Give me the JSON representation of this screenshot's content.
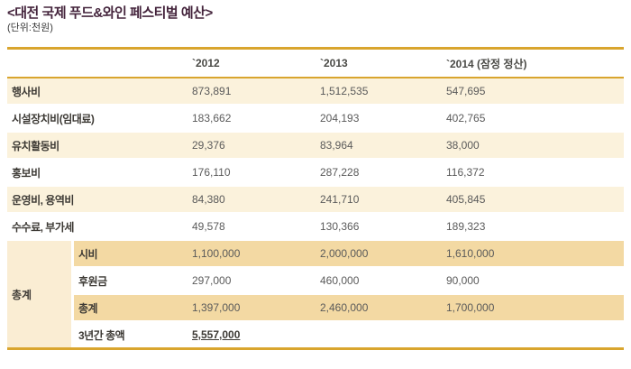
{
  "title": "<대전 국제 푸드&와인 페스티벌 예산>",
  "unit": "(단위:천원)",
  "colors": {
    "accent_gold": "#d9a52e",
    "row_cream": "#fbf2dc",
    "row_highlight_tan": "#f3d9a3",
    "group_cell_cream": "#faedd3",
    "title_text": "#44243c",
    "label_text": "#3d3a35",
    "value_text": "#5a5a5a"
  },
  "table": {
    "columns": [
      "`2012",
      "`2013",
      "`2014 (잠정 정산)"
    ],
    "rows": [
      {
        "label": "행사비",
        "values": [
          "873,891",
          "1,512,535",
          "547,695"
        ]
      },
      {
        "label": "시설장치비(임대료)",
        "values": [
          "183,662",
          "204,193",
          "402,765"
        ]
      },
      {
        "label": "유치활동비",
        "values": [
          "29,376",
          "83,964",
          "38,000"
        ]
      },
      {
        "label": "홍보비",
        "values": [
          "176,110",
          "287,228",
          "116,372"
        ]
      },
      {
        "label": "운영비, 용역비",
        "values": [
          "84,380",
          "241,710",
          "405,845"
        ]
      },
      {
        "label": "수수료, 부가세",
        "values": [
          "49,578",
          "130,366",
          "189,323"
        ]
      }
    ],
    "group": {
      "label": "총계",
      "rows": [
        {
          "label": "시비",
          "values": [
            "1,100,000",
            "2,000,000",
            "1,610,000"
          ]
        },
        {
          "label": "후원금",
          "values": [
            "297,000",
            "460,000",
            "90,000"
          ]
        },
        {
          "label": "총계",
          "values": [
            "1,397,000",
            "2,460,000",
            "1,700,000"
          ]
        },
        {
          "label": "3년간 총액",
          "values": [
            "5,557,000",
            "",
            ""
          ]
        }
      ]
    }
  }
}
